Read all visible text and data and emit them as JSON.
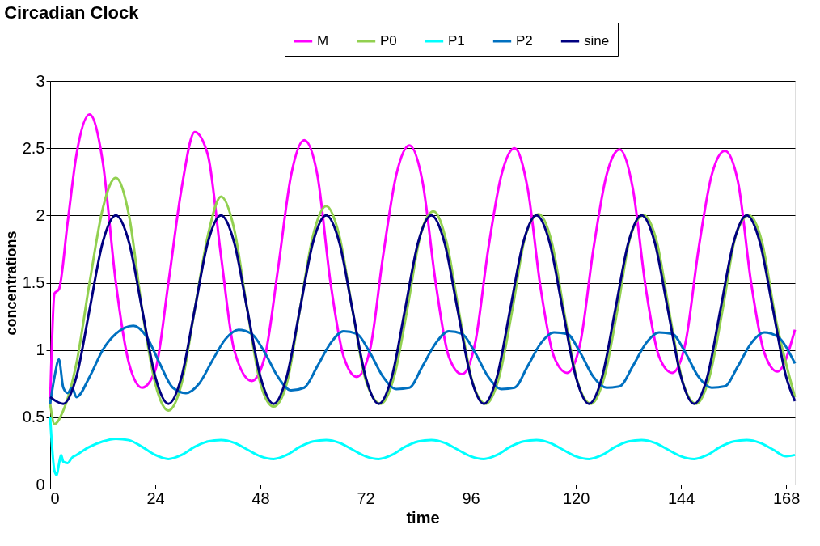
{
  "chart_data": {
    "type": "line",
    "title": "Circadian Clock",
    "xlabel": "time",
    "ylabel": "concentrations",
    "xlim": [
      0,
      170
    ],
    "xticks": [
      0,
      24,
      48,
      72,
      96,
      120,
      144,
      168
    ],
    "ylim": [
      0,
      3
    ],
    "yticks": [
      0,
      0.5,
      1,
      1.5,
      2,
      2.5,
      3
    ],
    "grid": "y",
    "legend": "top right",
    "marker": "none",
    "line_style": "solid",
    "series": [
      {
        "name": "M",
        "color": "#ff00ff",
        "x": [
          0,
          1,
          2,
          4,
          6,
          9,
          12,
          15,
          18,
          21,
          24,
          27,
          30,
          33,
          36,
          39,
          42,
          46,
          49,
          52,
          55,
          58,
          61,
          64,
          67,
          70,
          73,
          76,
          79,
          82,
          85,
          88,
          91,
          94,
          97,
          100,
          103,
          106,
          109,
          112,
          115,
          118,
          121,
          124,
          127,
          130,
          133,
          136,
          139,
          142,
          145,
          148,
          151,
          154,
          157,
          160,
          163,
          166,
          170
        ],
        "values": [
          0.6,
          1.42,
          1.45,
          1.95,
          2.45,
          2.75,
          2.4,
          1.5,
          0.9,
          0.72,
          0.85,
          1.5,
          2.2,
          2.62,
          2.45,
          1.7,
          1.0,
          0.77,
          0.95,
          1.6,
          2.3,
          2.56,
          2.3,
          1.5,
          0.95,
          0.8,
          1.0,
          1.7,
          2.3,
          2.52,
          2.25,
          1.5,
          0.95,
          0.82,
          1.05,
          1.75,
          2.3,
          2.5,
          2.2,
          1.45,
          0.95,
          0.83,
          1.05,
          1.75,
          2.3,
          2.49,
          2.2,
          1.45,
          0.95,
          0.83,
          1.05,
          1.75,
          2.3,
          2.48,
          2.25,
          1.5,
          0.98,
          0.84,
          1.15
        ]
      },
      {
        "name": "P0",
        "color": "#92d050",
        "x": [
          0,
          1,
          3,
          6,
          9,
          12,
          15,
          18,
          21,
          24,
          27,
          30,
          33,
          36,
          39,
          42,
          45,
          48,
          51,
          54,
          57,
          60,
          63,
          66,
          69,
          72,
          75.5,
          78.5,
          81.5,
          84.5,
          87.5,
          90.5,
          93.5,
          96.5,
          99.5,
          102.5,
          105.5,
          108.5,
          111.5,
          114.5,
          117.5,
          120.5,
          123.5,
          126.5,
          129.5,
          132.5,
          135.5,
          138.5,
          141.5,
          144.5,
          147.5,
          150.5,
          153.5,
          156.5,
          159.5,
          162.5,
          165.5,
          170
        ],
        "values": [
          0.6,
          0.45,
          0.55,
          0.9,
          1.5,
          2.05,
          2.28,
          2.0,
          1.3,
          0.75,
          0.55,
          0.75,
          1.3,
          1.85,
          2.14,
          1.9,
          1.3,
          0.75,
          0.58,
          0.75,
          1.3,
          1.85,
          2.07,
          1.85,
          1.3,
          0.78,
          0.6,
          0.8,
          1.3,
          1.85,
          2.03,
          1.8,
          1.25,
          0.75,
          0.6,
          0.8,
          1.3,
          1.85,
          2.01,
          1.8,
          1.25,
          0.75,
          0.6,
          0.8,
          1.3,
          1.85,
          2.0,
          1.8,
          1.25,
          0.75,
          0.6,
          0.8,
          1.3,
          1.85,
          2.0,
          1.8,
          1.25,
          0.65
        ]
      },
      {
        "name": "P1",
        "color": "#00ffff",
        "x": [
          0,
          1,
          1.5,
          2,
          2.5,
          3,
          4,
          5,
          6,
          9,
          12,
          15,
          18,
          21,
          24,
          27,
          30,
          33,
          36,
          39,
          42,
          45,
          48,
          51,
          54,
          57,
          60,
          63,
          66,
          69,
          72,
          75,
          78,
          81,
          84,
          87,
          90,
          93,
          96,
          99,
          102,
          105,
          108,
          111,
          114,
          117,
          120,
          123,
          126,
          129,
          132,
          135,
          138,
          141,
          144,
          147,
          150,
          153,
          156,
          159,
          162,
          165,
          168,
          170
        ],
        "values": [
          0.5,
          0.1,
          0.07,
          0.15,
          0.22,
          0.17,
          0.16,
          0.2,
          0.22,
          0.28,
          0.32,
          0.34,
          0.33,
          0.28,
          0.22,
          0.19,
          0.22,
          0.28,
          0.32,
          0.33,
          0.31,
          0.26,
          0.21,
          0.19,
          0.22,
          0.28,
          0.32,
          0.33,
          0.31,
          0.26,
          0.21,
          0.19,
          0.22,
          0.28,
          0.32,
          0.33,
          0.31,
          0.26,
          0.21,
          0.19,
          0.22,
          0.28,
          0.32,
          0.33,
          0.31,
          0.26,
          0.21,
          0.19,
          0.22,
          0.28,
          0.32,
          0.33,
          0.31,
          0.26,
          0.21,
          0.19,
          0.22,
          0.28,
          0.32,
          0.33,
          0.31,
          0.26,
          0.21,
          0.22
        ]
      },
      {
        "name": "P2",
        "color": "#0070c0",
        "x": [
          0,
          1,
          2,
          3,
          4,
          5,
          6,
          9,
          12,
          15,
          19,
          22,
          25,
          28,
          31,
          34,
          37,
          40,
          43,
          46,
          49,
          52,
          55,
          58,
          61,
          64,
          67,
          70,
          73,
          76,
          79,
          82,
          85,
          88,
          91,
          94,
          97,
          100,
          103,
          106,
          109,
          112,
          115,
          118,
          121,
          124,
          127,
          130,
          133,
          136,
          139,
          142,
          145,
          148,
          151,
          154,
          157,
          160,
          163,
          166,
          170
        ],
        "values": [
          0.6,
          0.8,
          0.93,
          0.72,
          0.68,
          0.72,
          0.65,
          0.8,
          1.0,
          1.12,
          1.18,
          1.1,
          0.9,
          0.72,
          0.68,
          0.75,
          0.92,
          1.08,
          1.15,
          1.12,
          0.98,
          0.8,
          0.7,
          0.72,
          0.88,
          1.05,
          1.14,
          1.12,
          0.98,
          0.8,
          0.71,
          0.72,
          0.88,
          1.05,
          1.14,
          1.12,
          0.98,
          0.8,
          0.71,
          0.72,
          0.88,
          1.05,
          1.13,
          1.12,
          0.98,
          0.8,
          0.72,
          0.73,
          0.88,
          1.05,
          1.13,
          1.12,
          0.98,
          0.8,
          0.72,
          0.73,
          0.88,
          1.05,
          1.13,
          1.1,
          0.9
        ]
      },
      {
        "name": "sine",
        "color": "#000080",
        "x": [
          0,
          3,
          6,
          9,
          12,
          15,
          18,
          21,
          24,
          27,
          30,
          33,
          36,
          39,
          42,
          45,
          48,
          51,
          54,
          57,
          60,
          63,
          66,
          69,
          72,
          75,
          78,
          81,
          84,
          87,
          90,
          93,
          96,
          99,
          102,
          105,
          108,
          111,
          114,
          117,
          120,
          123,
          126,
          129,
          132,
          135,
          138,
          141,
          144,
          147,
          150,
          153,
          156,
          159,
          162,
          165,
          168,
          170
        ],
        "values": [
          0.65,
          0.6,
          0.8,
          1.3,
          1.8,
          2.0,
          1.8,
          1.3,
          0.8,
          0.6,
          0.8,
          1.3,
          1.8,
          2.0,
          1.8,
          1.3,
          0.8,
          0.6,
          0.8,
          1.3,
          1.8,
          2.0,
          1.8,
          1.3,
          0.8,
          0.6,
          0.8,
          1.3,
          1.8,
          2.0,
          1.8,
          1.3,
          0.8,
          0.6,
          0.8,
          1.3,
          1.8,
          2.0,
          1.8,
          1.3,
          0.8,
          0.6,
          0.8,
          1.3,
          1.8,
          2.0,
          1.8,
          1.3,
          0.8,
          0.6,
          0.8,
          1.3,
          1.8,
          2.0,
          1.8,
          1.3,
          0.8,
          0.62
        ]
      }
    ]
  }
}
